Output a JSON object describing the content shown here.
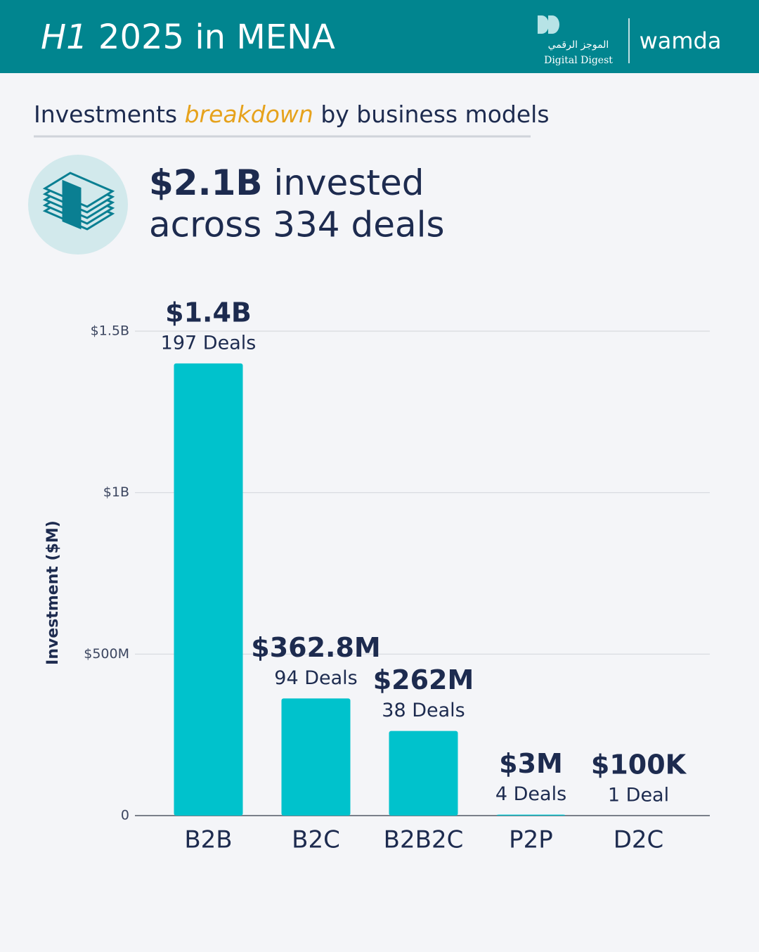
{
  "header": {
    "title_italic": "H1",
    "title_rest": "2025 in MENA",
    "logo_arabic": "الموجز الرقمي",
    "logo_english": "Digital Digest",
    "logo_wamda": "wamda"
  },
  "subtitle": {
    "before": "Investments",
    "highlight": "breakdown",
    "after": "by business models"
  },
  "headline": {
    "amount": "$2.1B",
    "line1_rest": "invested",
    "line2": "across 334 deals"
  },
  "chart_data": {
    "type": "bar",
    "y_label": "Investment ($M)",
    "categories": [
      "B2B",
      "B2C",
      "B2B2C",
      "P2P",
      "D2C"
    ],
    "values": [
      1400,
      362.8,
      262,
      3,
      0.1
    ],
    "value_labels": [
      "$1.4B",
      "$362.8M",
      "$262M",
      "$3M",
      "$100K"
    ],
    "deal_labels": [
      "197 Deals",
      "94 Deals",
      "38 Deals",
      "4 Deals",
      "1 Deal"
    ],
    "color": "#00c2cc",
    "ylim": [
      0,
      1500
    ],
    "yticks": [
      0,
      {
        "value": 500,
        "label": "$500M"
      },
      {
        "value": 1000,
        "label": "$1B"
      },
      {
        "value": 1500,
        "label": "$1.5B"
      }
    ],
    "grid": true
  }
}
